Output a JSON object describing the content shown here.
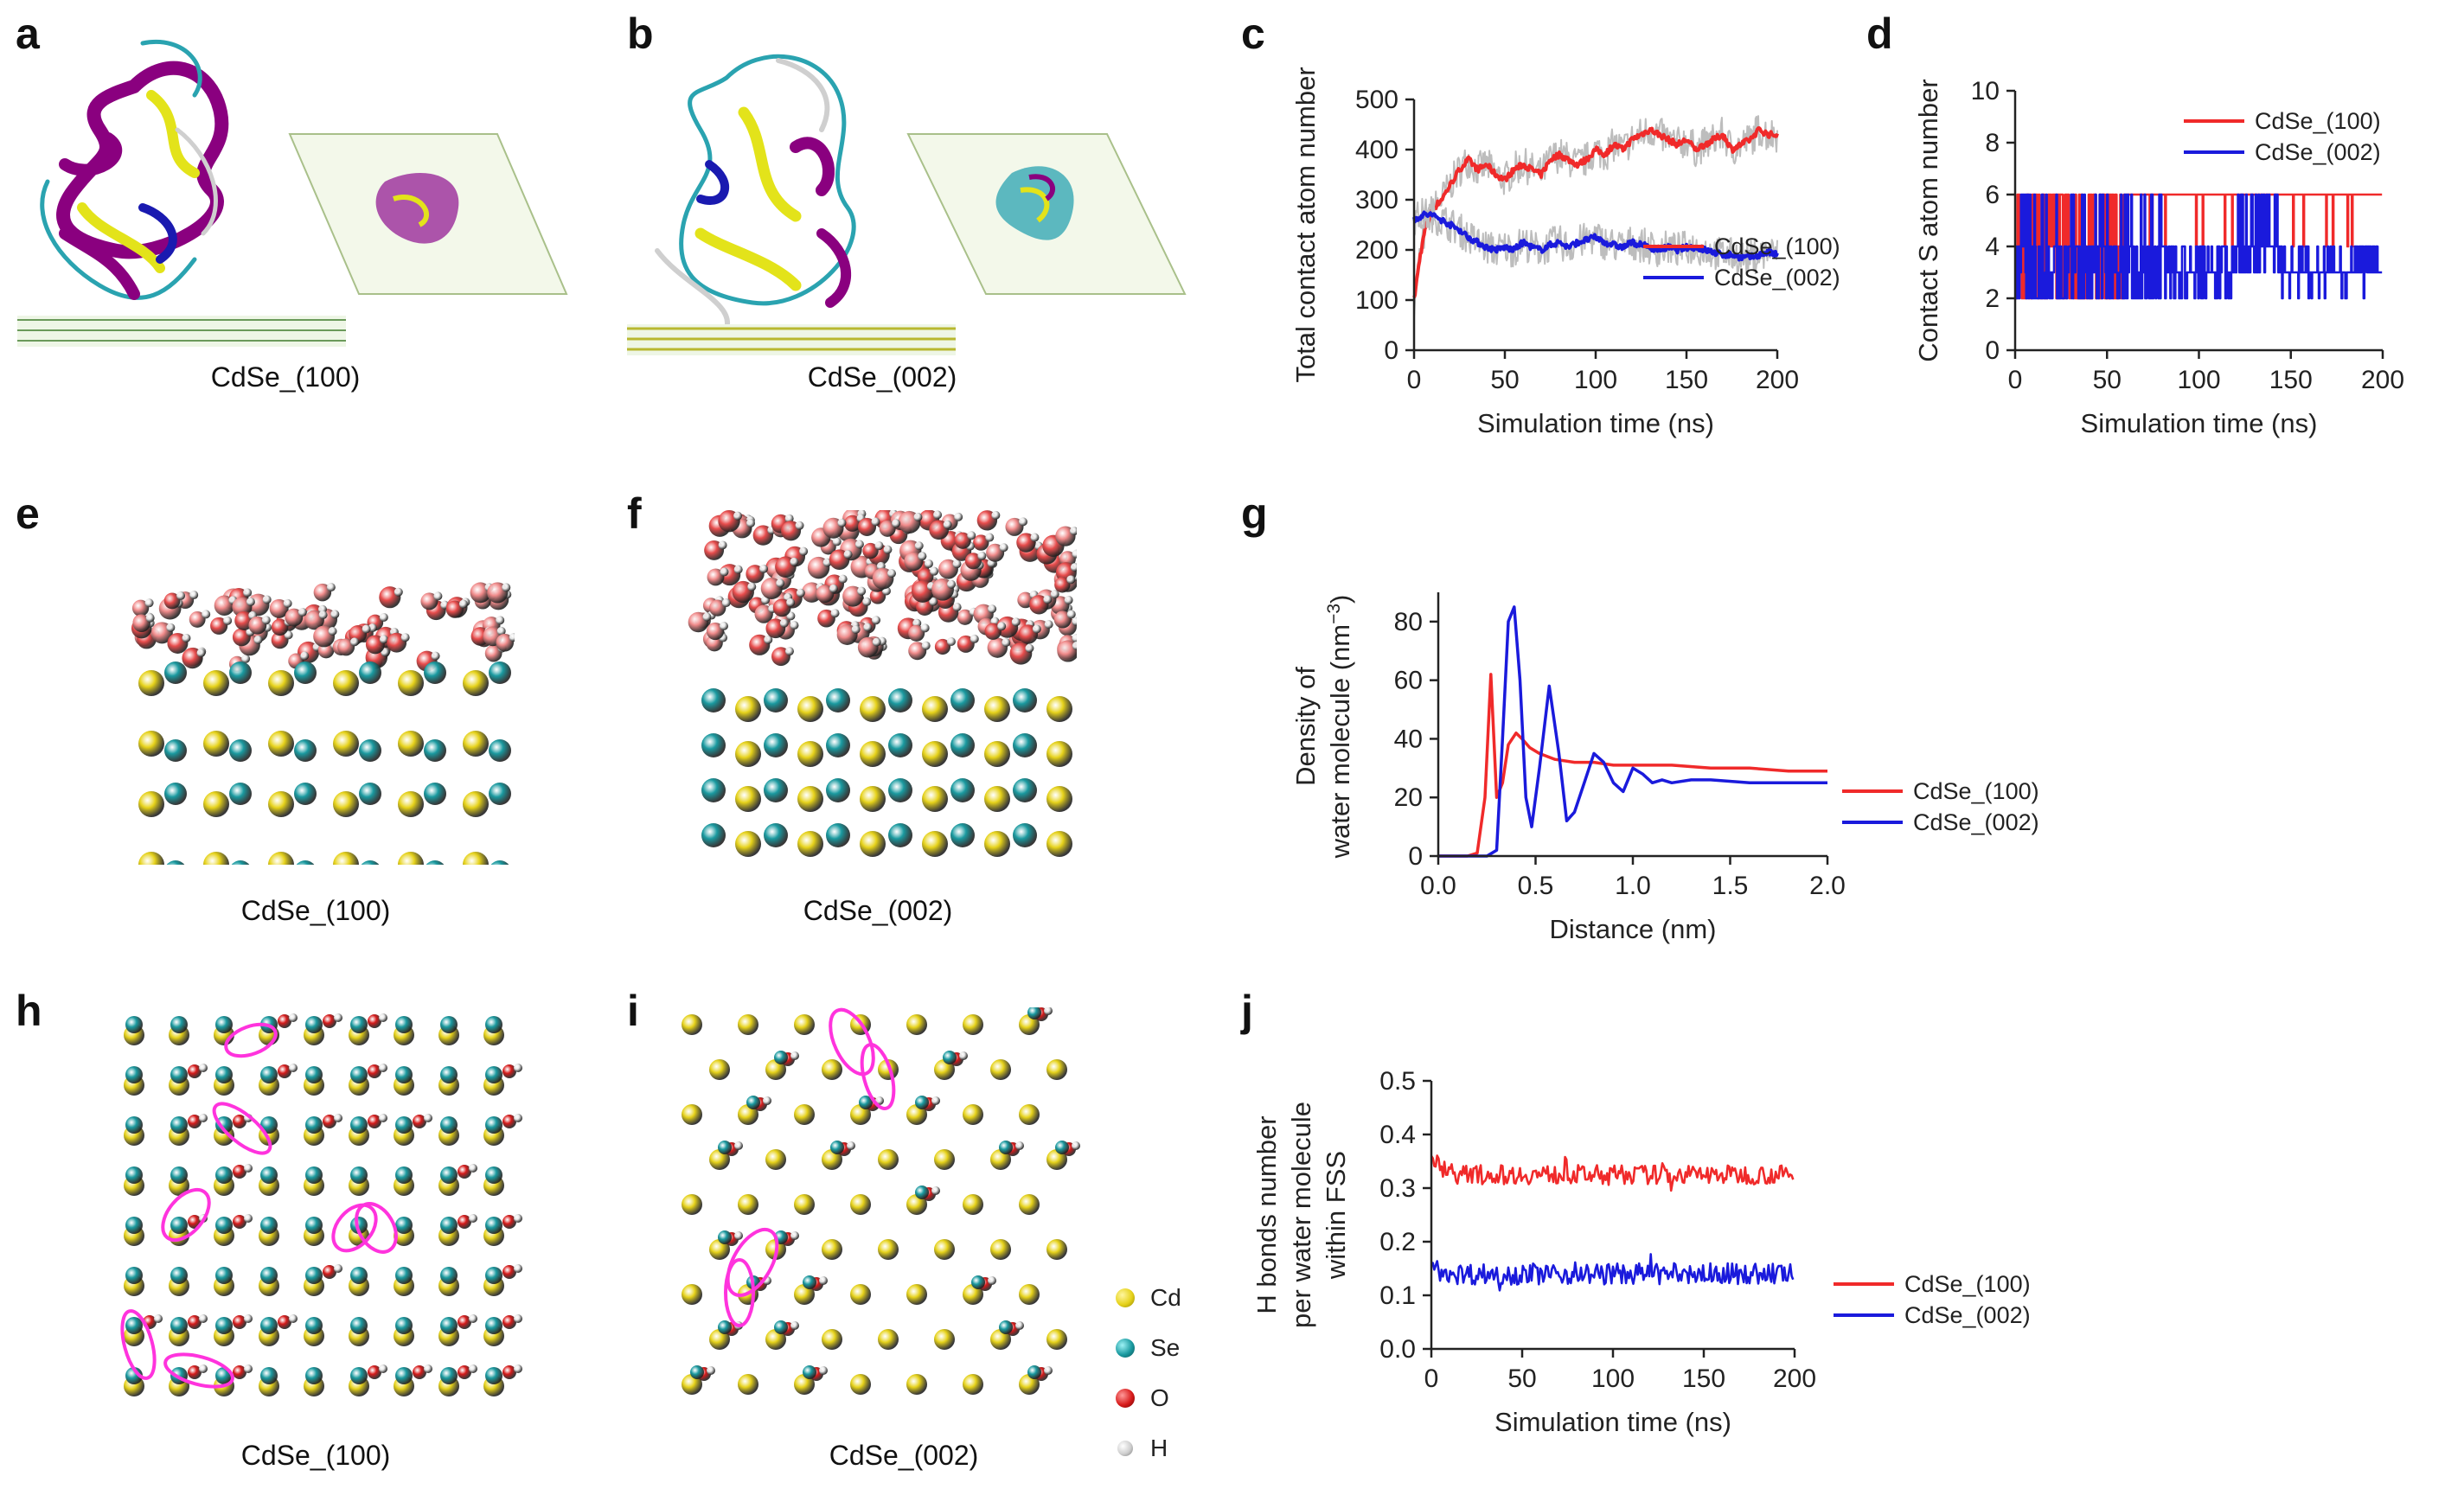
{
  "panel_labels": [
    "a",
    "b",
    "c",
    "d",
    "e",
    "f",
    "g",
    "h",
    "i",
    "j"
  ],
  "captions": {
    "a": "CdSe_(100)",
    "b": "CdSe_(002)",
    "e": "CdSe_(100)",
    "f": "CdSe_(002)",
    "h": "CdSe_(100)",
    "i": "CdSe_(002)"
  },
  "atom_legend": [
    {
      "label": "Cd",
      "color": "#e6d21a"
    },
    {
      "label": "Se",
      "color": "#1a9aa0"
    },
    {
      "label": "O",
      "color": "#d81b1b"
    },
    {
      "label": "H",
      "color": "#cccccc"
    }
  ],
  "colors": {
    "red": "#f02a2a",
    "blue": "#1a1adc",
    "band": "#bdbdbd",
    "cd": "#e6d21a",
    "se": "#1a9aa0",
    "o": "#d81b1b",
    "h": "#dddddd",
    "ring": "#ff33dd"
  },
  "chart_data": [
    {
      "id": "c",
      "type": "line",
      "xlabel": "Simulation time (ns)",
      "ylabel": "Total contact atom number",
      "xlim": [
        0,
        200
      ],
      "ylim": [
        0,
        500
      ],
      "xticks": [
        0,
        50,
        100,
        150,
        200
      ],
      "yticks": [
        0,
        100,
        200,
        300,
        400,
        500
      ],
      "legend": "bottom-right",
      "series": [
        {
          "name": "CdSe_(100)",
          "color": "red",
          "x": [
            0,
            3,
            6,
            10,
            15,
            20,
            25,
            30,
            35,
            40,
            45,
            50,
            55,
            60,
            65,
            70,
            75,
            80,
            85,
            90,
            95,
            100,
            105,
            110,
            115,
            120,
            125,
            130,
            135,
            140,
            145,
            150,
            155,
            160,
            165,
            170,
            175,
            180,
            185,
            190,
            195,
            200
          ],
          "y": [
            100,
            180,
            240,
            280,
            300,
            330,
            360,
            380,
            360,
            370,
            350,
            340,
            360,
            370,
            360,
            350,
            380,
            390,
            380,
            370,
            380,
            400,
            390,
            410,
            400,
            420,
            430,
            440,
            430,
            420,
            410,
            420,
            400,
            410,
            420,
            430,
            400,
            410,
            420,
            440,
            430,
            430
          ]
        },
        {
          "name": "CdSe_(002)",
          "color": "blue",
          "x": [
            0,
            5,
            10,
            15,
            20,
            25,
            30,
            35,
            40,
            45,
            50,
            55,
            60,
            65,
            70,
            75,
            80,
            85,
            90,
            95,
            100,
            105,
            110,
            115,
            120,
            125,
            130,
            135,
            140,
            145,
            150,
            155,
            160,
            165,
            170,
            175,
            180,
            185,
            190,
            195,
            200
          ],
          "y": [
            260,
            270,
            270,
            260,
            250,
            240,
            225,
            215,
            205,
            200,
            205,
            200,
            215,
            205,
            200,
            210,
            215,
            205,
            215,
            220,
            225,
            215,
            210,
            205,
            215,
            210,
            205,
            200,
            205,
            200,
            205,
            205,
            200,
            195,
            190,
            190,
            185,
            185,
            190,
            195,
            190
          ]
        }
      ]
    },
    {
      "id": "d",
      "type": "line",
      "xlabel": "Simulation time (ns)",
      "ylabel": "Contact S atom number",
      "xlim": [
        0,
        200
      ],
      "ylim": [
        0,
        10
      ],
      "xticks": [
        0,
        50,
        100,
        150,
        200
      ],
      "yticks": [
        0,
        2,
        4,
        6,
        8,
        10
      ],
      "legend": "top-right",
      "series": [
        {
          "name": "CdSe_(100)",
          "color": "red"
        },
        {
          "name": "CdSe_(002)",
          "color": "blue"
        }
      ]
    },
    {
      "id": "g",
      "type": "line",
      "xlabel": "Distance (nm)",
      "ylabel_line1": "Density of",
      "ylabel_line2": "water molecule (nm",
      "ylabel_sup": "−3",
      "ylabel_end": ")",
      "xlim": [
        0,
        2.0
      ],
      "ylim": [
        0,
        90
      ],
      "xticks": [
        "0.0",
        "0.5",
        "1.0",
        "1.5",
        "2.0"
      ],
      "yticks": [
        0,
        20,
        40,
        60,
        80
      ],
      "legend": "outside-right",
      "series": [
        {
          "name": "CdSe_(100)",
          "color": "red",
          "x": [
            0,
            0.15,
            0.2,
            0.24,
            0.27,
            0.3,
            0.33,
            0.36,
            0.4,
            0.43,
            0.47,
            0.52,
            0.6,
            0.7,
            0.8,
            0.9,
            1.0,
            1.2,
            1.4,
            1.6,
            1.8,
            2.0
          ],
          "y": [
            0,
            0,
            1,
            20,
            62,
            20,
            25,
            38,
            42,
            40,
            37,
            35,
            33,
            32,
            32,
            31,
            31,
            31,
            30,
            30,
            29,
            29
          ]
        },
        {
          "name": "CdSe_(002)",
          "color": "blue",
          "x": [
            0,
            0.25,
            0.3,
            0.33,
            0.36,
            0.39,
            0.42,
            0.45,
            0.48,
            0.52,
            0.57,
            0.62,
            0.66,
            0.7,
            0.75,
            0.8,
            0.85,
            0.9,
            0.95,
            1.0,
            1.05,
            1.1,
            1.15,
            1.2,
            1.3,
            1.4,
            1.6,
            1.8,
            2.0
          ],
          "y": [
            0,
            0,
            2,
            40,
            80,
            85,
            60,
            20,
            10,
            30,
            58,
            35,
            12,
            15,
            25,
            35,
            32,
            25,
            22,
            30,
            28,
            25,
            26,
            25,
            26,
            26,
            25,
            25,
            25
          ]
        }
      ]
    },
    {
      "id": "j",
      "type": "line",
      "xlabel": "Simulation time (ns)",
      "ylabel_line1": "H bonds number",
      "ylabel_line2": "per water molecule",
      "ylabel_line3": "within FSS",
      "xlim": [
        0,
        200
      ],
      "ylim": [
        0,
        0.5
      ],
      "xticks": [
        0,
        50,
        100,
        150,
        200
      ],
      "yticks": [
        "0.0",
        "0.1",
        "0.2",
        "0.3",
        "0.4",
        "0.5"
      ],
      "legend": "outside-right",
      "series": [
        {
          "name": "CdSe_(100)",
          "color": "red",
          "mean": 0.325,
          "start": 0.35,
          "noise": 0.018
        },
        {
          "name": "CdSe_(002)",
          "color": "blue",
          "mean": 0.14,
          "start": 0.15,
          "noise": 0.02
        }
      ]
    }
  ]
}
